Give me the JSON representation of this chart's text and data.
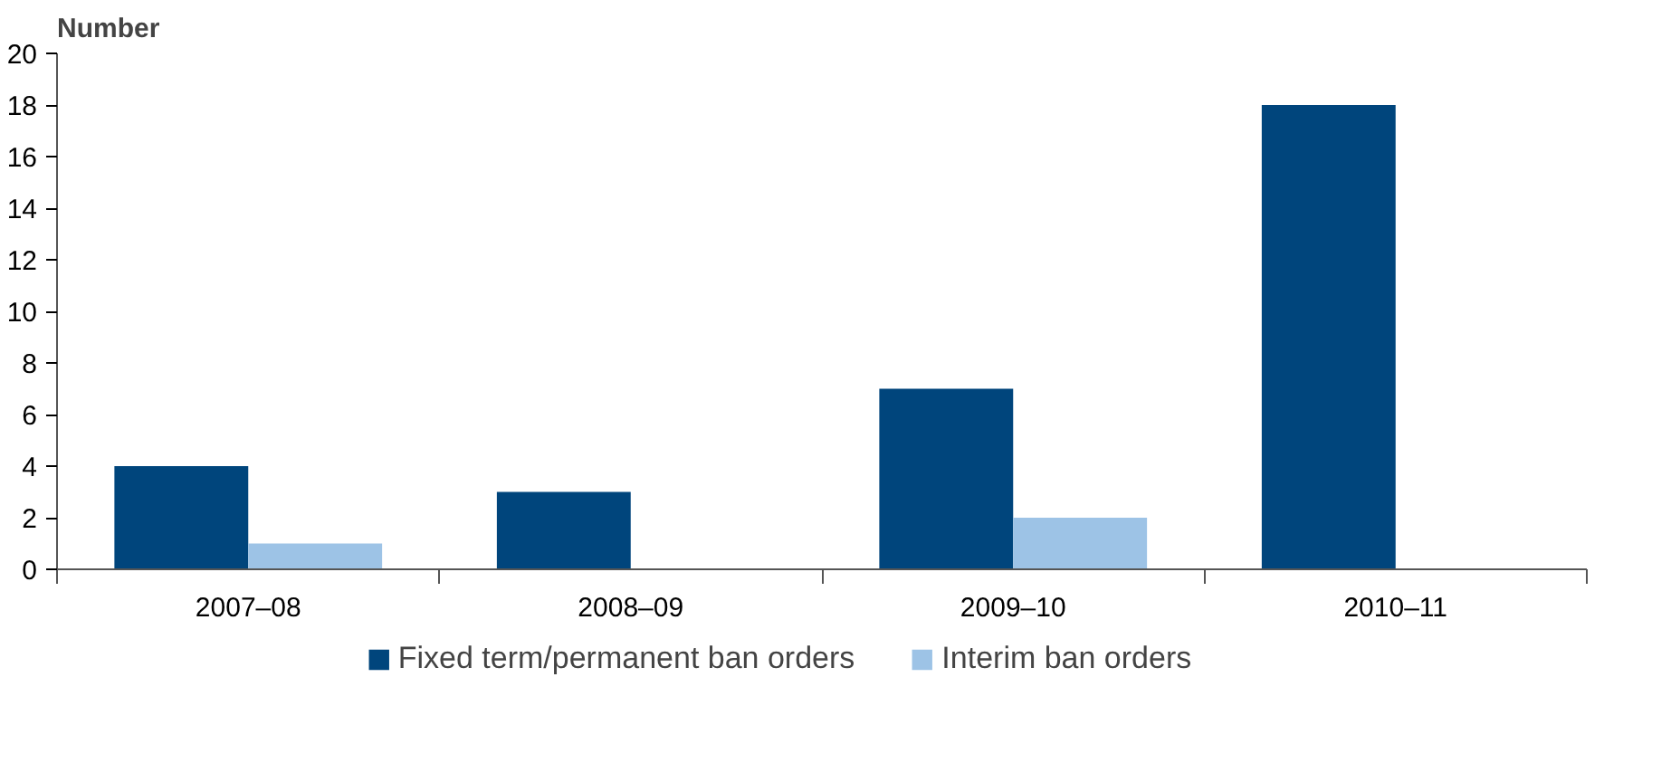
{
  "chart_data": {
    "type": "bar",
    "ylabel": "Number",
    "categories": [
      "2007–08",
      "2008–09",
      "2009–10",
      "2010–11"
    ],
    "series": [
      {
        "name": "Fixed term/permanent ban orders",
        "color": "#00457c",
        "values": [
          4,
          3,
          7,
          18
        ]
      },
      {
        "name": "Interim ban orders",
        "color": "#9dc3e6",
        "values": [
          1,
          0,
          2,
          0
        ]
      }
    ],
    "ylim": [
      0,
      20
    ],
    "yticks": [
      0,
      2,
      4,
      6,
      8,
      10,
      12,
      14,
      16,
      18,
      20
    ],
    "grid": false,
    "legend": "bottom"
  }
}
